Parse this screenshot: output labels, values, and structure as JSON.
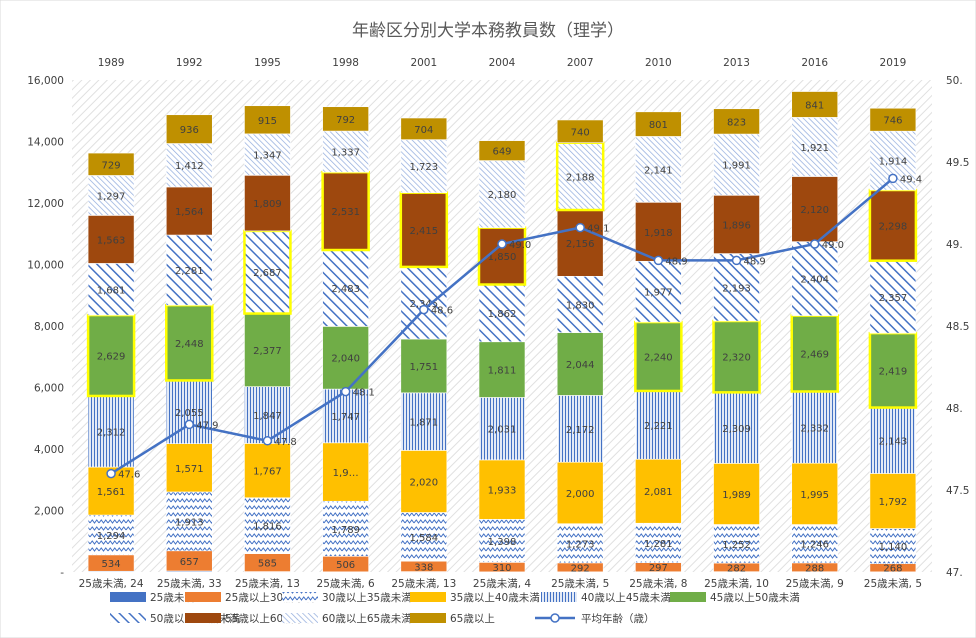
{
  "chart_data": {
    "type": "bar",
    "stacked": true,
    "title": "年齢区分別大学本務教員数（理学）",
    "years": [
      "1989",
      "1992",
      "1995",
      "1998",
      "2001",
      "2004",
      "2007",
      "2010",
      "2013",
      "2016",
      "2019"
    ],
    "categories": [
      "25歳未満, 24",
      "25歳未満, 33",
      "25歳未満, 13",
      "25歳未満, 6",
      "25歳未満, 13",
      "25歳未満, 4",
      "25歳未満, 5",
      "25歳未満, 8",
      "25歳未満, 10",
      "25歳未満, 9",
      "25歳未満, 5"
    ],
    "y_ticks": [
      "-",
      "2,000",
      "4,000",
      "6,000",
      "8,000",
      "10,000",
      "12,000",
      "14,000",
      "16,000"
    ],
    "y2_ticks": [
      "47.",
      "47.5",
      "48.",
      "48.5",
      "49.",
      "49.5",
      "50."
    ],
    "ylim": [
      0,
      16000
    ],
    "y2lim": [
      47,
      50
    ],
    "series": [
      {
        "name": "25歳未満",
        "color": "#4472C4",
        "values": [
          24,
          33,
          13,
          6,
          13,
          4,
          5,
          8,
          10,
          9,
          5
        ],
        "labels": [
          "",
          "",
          "",
          "",
          "",
          "",
          "",
          "",
          "",
          "",
          ""
        ]
      },
      {
        "name": "25歳以上30歳未満",
        "color": "#ED7D31",
        "values": [
          534,
          657,
          585,
          506,
          338,
          310,
          292,
          297,
          282,
          288,
          268
        ],
        "labels": [
          "534",
          "657",
          "585",
          "506",
          "338",
          "310",
          "292",
          "297",
          "282",
          "288",
          "268"
        ]
      },
      {
        "name": "30歳以上35歳未満",
        "color": "#4472C4",
        "values": [
          1294,
          1913,
          1816,
          1789,
          1584,
          1398,
          1273,
          1281,
          1252,
          1246,
          1140
        ],
        "labels": [
          "1,294",
          "1,913",
          "1,816",
          "1,789",
          "1,584",
          "1,398",
          "1,273",
          "1,281",
          "1,252",
          "1,246",
          "1,140"
        ]
      },
      {
        "name": "35歳以上40歳未満",
        "color": "#FFC000",
        "values": [
          1561,
          1571,
          1767,
          1900,
          2020,
          1933,
          2000,
          2081,
          1989,
          1995,
          1792
        ],
        "labels": [
          "1,561",
          "1,571",
          "1,767",
          "1,9…",
          "2,020",
          "1,933",
          "2,000",
          "2,081",
          "1,989",
          "1,995",
          "1,792"
        ]
      },
      {
        "name": "40歳以上45歳未満",
        "color": "#4472C4",
        "values": [
          2312,
          2055,
          1847,
          1747,
          1871,
          2031,
          2172,
          2221,
          2309,
          2332,
          2143
        ],
        "labels": [
          "2,312",
          "2,055",
          "1,847",
          "1,747",
          "1,871",
          "2,031",
          "2,172",
          "2,221",
          "2,309",
          "2,332",
          "2,143"
        ]
      },
      {
        "name": "45歳以上50歳未満",
        "color": "#70AD47",
        "values": [
          2629,
          2448,
          2377,
          2040,
          1751,
          1811,
          2044,
          2240,
          2320,
          2469,
          2419
        ],
        "labels": [
          "2,629",
          "2,448",
          "2,377",
          "2,040",
          "1,751",
          "1,811",
          "2,044",
          "2,240",
          "2,320",
          "2,469",
          "2,419"
        ]
      },
      {
        "name": "50歳以上55歳未満",
        "color": "#4472C4",
        "values": [
          1681,
          2281,
          2687,
          2483,
          2345,
          1862,
          1830,
          1977,
          2193,
          2404,
          2357
        ],
        "labels": [
          "1,681",
          "2,281",
          "2,687",
          "2,483",
          "2,345",
          "1,862",
          "1,830",
          "1,977",
          "2,193",
          "2,404",
          "2,357"
        ]
      },
      {
        "name": "55歳以上60歳未満",
        "color": "#9E480E",
        "values": [
          1563,
          1564,
          1809,
          2531,
          2415,
          1850,
          2156,
          1918,
          1896,
          2120,
          2298
        ],
        "labels": [
          "1,563",
          "1,564",
          "1,809",
          "2,531",
          "2,415",
          "1,850",
          "2,156",
          "1,918",
          "1,896",
          "2,120",
          "2,298"
        ]
      },
      {
        "name": "60歳以上65歳未満",
        "color": "#4472C4",
        "values": [
          1297,
          1412,
          1347,
          1337,
          1723,
          2180,
          2188,
          2141,
          1991,
          1921,
          1914
        ],
        "labels": [
          "1,297",
          "1,412",
          "1,347",
          "1,337",
          "1,723",
          "2,180",
          "2,188",
          "2,141",
          "1,991",
          "1,921",
          "1,914"
        ]
      },
      {
        "name": "65歳以上",
        "color": "#BF9000",
        "values": [
          729,
          936,
          915,
          792,
          704,
          649,
          740,
          801,
          823,
          841,
          746
        ],
        "labels": [
          "729",
          "936",
          "915",
          "792",
          "704",
          "649",
          "740",
          "801",
          "823",
          "841",
          "746"
        ]
      }
    ],
    "line": {
      "name": "平均年齢（歳）",
      "color": "#4472C4",
      "values": [
        47.6,
        47.9,
        47.8,
        48.1,
        48.6,
        49.0,
        49.1,
        48.9,
        48.9,
        49.0,
        49.4
      ],
      "labels": [
        "47.6",
        "47.9",
        "47.8",
        "48.1",
        "48.6",
        "49.0",
        "49.1",
        "48.9",
        "48.9",
        "49.0",
        "49.4"
      ]
    },
    "highlights": [
      [
        0,
        5
      ],
      [
        1,
        5
      ],
      [
        2,
        6
      ],
      [
        3,
        7
      ],
      [
        4,
        7
      ],
      [
        5,
        7
      ],
      [
        6,
        8
      ],
      [
        7,
        5
      ],
      [
        8,
        5
      ],
      [
        9,
        5
      ],
      [
        10,
        5
      ],
      [
        10,
        7
      ]
    ],
    "legend_position": "bottom"
  }
}
